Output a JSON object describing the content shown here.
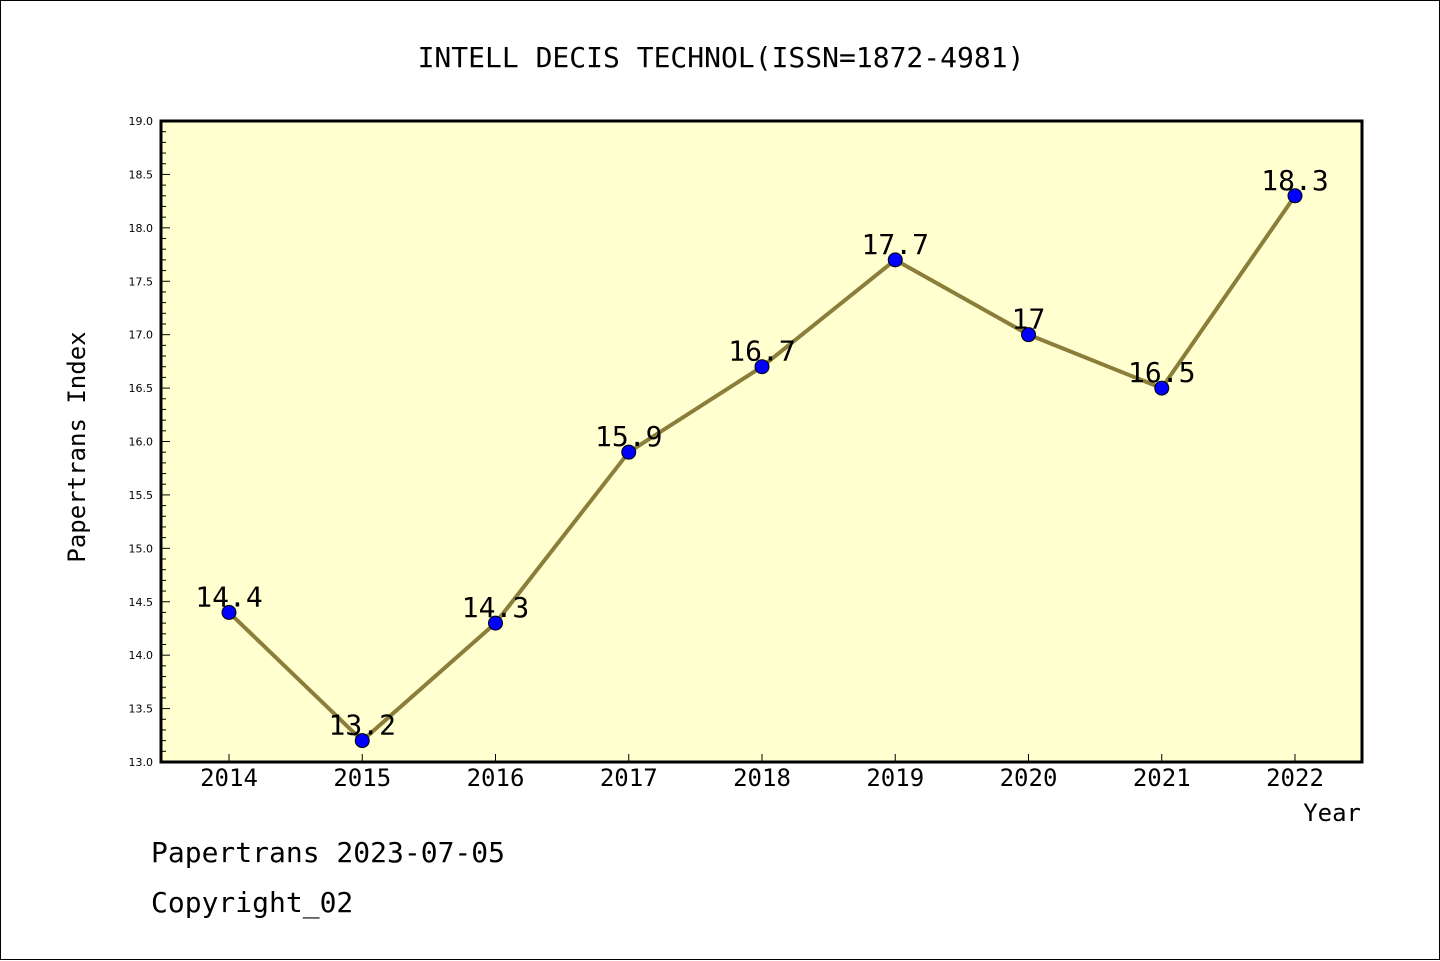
{
  "chart_data": {
    "type": "line",
    "title": "INTELL DECIS TECHNOL(ISSN=1872-4981)",
    "xlabel": "Year",
    "ylabel": "Papertrans Index",
    "categories": [
      "2014",
      "2015",
      "2016",
      "2017",
      "2018",
      "2019",
      "2020",
      "2021",
      "2022"
    ],
    "series": [
      {
        "name": "Papertrans Index",
        "values": [
          14.4,
          13.2,
          14.3,
          15.9,
          16.7,
          17.7,
          17.0,
          16.5,
          18.3
        ],
        "labels": [
          "14.4",
          "13.2",
          "14.3",
          "15.9",
          "16.7",
          "17.7",
          "17",
          "16.5",
          "18.3"
        ]
      }
    ],
    "ylim": [
      13.0,
      19.0
    ],
    "yticks": [
      "13.0",
      "13.5",
      "14.0",
      "14.5",
      "15.0",
      "15.5",
      "16.0",
      "16.5",
      "17.0",
      "17.5",
      "18.0",
      "18.5",
      "19.0"
    ],
    "grid": false,
    "colors": {
      "plot_background": "#ffffd0",
      "line": "#8b7e3a",
      "marker": "#0000ff"
    }
  },
  "footer": {
    "line1": "Papertrans 2023-07-05",
    "line2": "Copyright_02"
  }
}
